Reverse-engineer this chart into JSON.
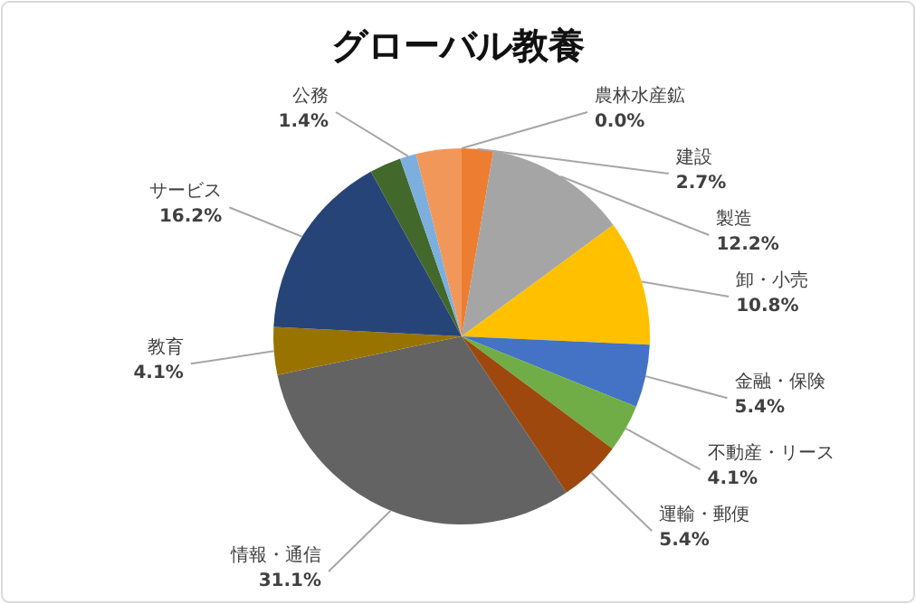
{
  "chart_data": {
    "type": "pie",
    "title": "グローバル教養",
    "categories": [
      "農林水産鉱",
      "建設",
      "製造",
      "卸・小売",
      "金融・保険",
      "不動産・リース",
      "運輸・郵便",
      "情報・通信",
      "教育",
      "サービス",
      null,
      "公務",
      null
    ],
    "values": [
      0.0,
      2.7,
      12.2,
      10.8,
      5.4,
      4.1,
      5.4,
      31.1,
      4.1,
      16.2,
      2.7,
      1.4,
      3.9
    ],
    "value_labels": [
      "0.0%",
      "2.7%",
      "12.2%",
      "10.8%",
      "5.4%",
      "4.1%",
      "5.4%",
      "31.1%",
      "4.1%",
      "16.2%",
      null,
      "1.4%",
      null
    ],
    "colors": [
      "#5b9bd5",
      "#ed7d31",
      "#a5a5a5",
      "#ffc000",
      "#4472c4",
      "#70ad47",
      "#9e480e",
      "#636363",
      "#997300",
      "#264478",
      "#43682b",
      "#7cafdd",
      "#f1975a"
    ]
  }
}
